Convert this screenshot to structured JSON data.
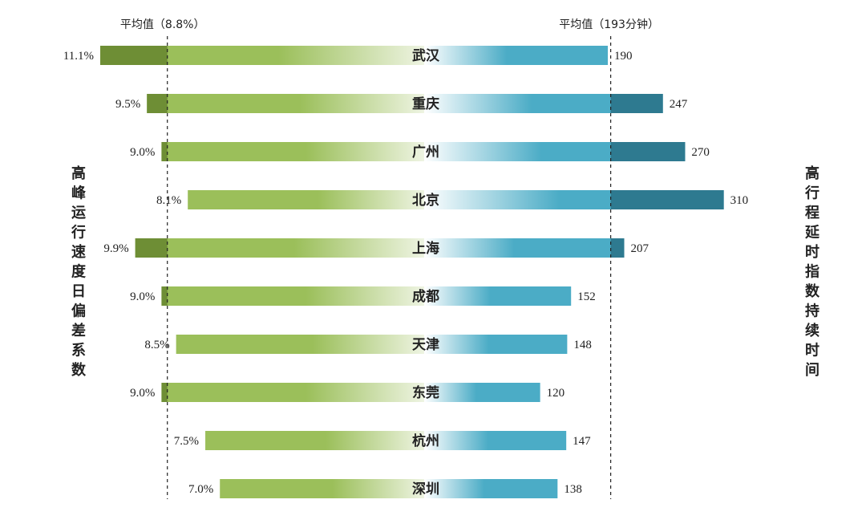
{
  "chart_data": {
    "type": "bar",
    "categories": [
      "武汉",
      "重庆",
      "广州",
      "北京",
      "上海",
      "成都",
      "天津",
      "东莞",
      "杭州",
      "深圳"
    ],
    "series": [
      {
        "name": "高峰运行速度日偏差系数",
        "unit": "%",
        "values": [
          11.1,
          9.5,
          9.0,
          8.1,
          9.9,
          9.0,
          8.5,
          9.0,
          7.5,
          7.0
        ],
        "labels": [
          "11.1%",
          "9.5%",
          "9.0%",
          "8.1%",
          "9.9%",
          "9.0%",
          "8.5%",
          "9.0%",
          "7.5%",
          "7.0%"
        ],
        "average": 8.8,
        "average_label": "平均值（8.8%）",
        "axis_title": [
          "高",
          "峰",
          "运",
          "行",
          "速",
          "度",
          "日",
          "偏",
          "差",
          "系",
          "数"
        ],
        "color": "#9bbf5a",
        "dark_color": "#6e8e35"
      },
      {
        "name": "高行程延时指数持续时间",
        "unit": "分钟",
        "values": [
          190,
          247,
          270,
          310,
          207,
          152,
          148,
          120,
          147,
          138
        ],
        "labels": [
          "190",
          "247",
          "270",
          "310",
          "207",
          "152",
          "148",
          "120",
          "147",
          "138"
        ],
        "average": 193,
        "average_label": "平均值（193分钟）",
        "axis_title": [
          "高",
          "行",
          "程",
          "延",
          "时",
          "指",
          "数",
          "持",
          "续",
          "时",
          "间"
        ],
        "color": "#4bacc6",
        "dark_color": "#2e7a90"
      }
    ]
  }
}
